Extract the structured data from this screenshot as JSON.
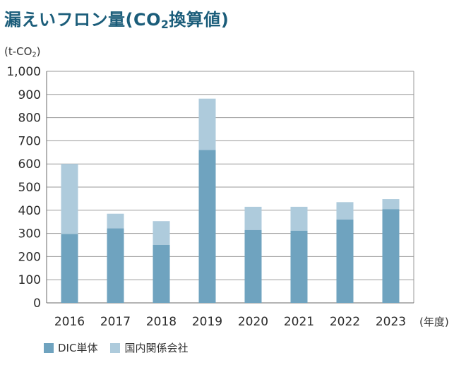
{
  "chart_data": {
    "type": "bar",
    "stacked": true,
    "title_prefix": "漏えいフロン量(CO",
    "title_sub": "2",
    "title_suffix": "換算値)",
    "unit_prefix": "(t-CO",
    "unit_sub": "2",
    "unit_suffix": ")",
    "x_unit": "(年度)",
    "categories": [
      "2016",
      "2017",
      "2018",
      "2019",
      "2020",
      "2021",
      "2022",
      "2023"
    ],
    "series": [
      {
        "name": "DIC単体",
        "color": "#6fa3bf",
        "values": [
          298,
          322,
          250,
          660,
          315,
          312,
          360,
          405
        ]
      },
      {
        "name": "国内関係会社",
        "color": "#aecbdc",
        "values": [
          302,
          63,
          103,
          222,
          100,
          103,
          75,
          43
        ]
      }
    ],
    "ylim": [
      0,
      1000
    ],
    "yticks": [
      0,
      100,
      200,
      300,
      400,
      500,
      600,
      700,
      800,
      900,
      1000
    ],
    "ytick_labels": [
      "0",
      "100",
      "200",
      "300",
      "400",
      "500",
      "600",
      "700",
      "800",
      "900",
      "1,000"
    ],
    "grid": true,
    "legend_position": "bottom-left"
  }
}
